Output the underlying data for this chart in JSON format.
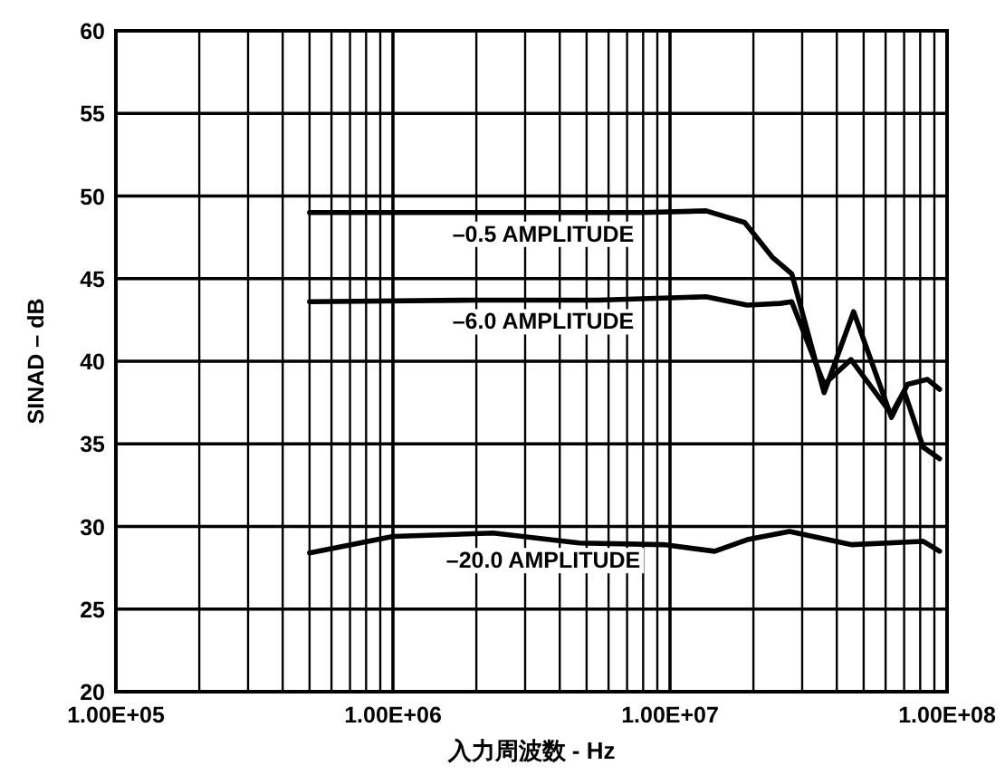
{
  "chart_data": {
    "type": "line",
    "xlabel": "入力周波数 - Hz",
    "ylabel": "SINAD – dB",
    "log": "x",
    "grid": true,
    "marker": "none",
    "line_style": "solid",
    "xlim": [
      100000,
      100000000
    ],
    "ylim": [
      20,
      60
    ],
    "xticks": [
      {
        "value": 100000,
        "label": "1.00E+05"
      },
      {
        "value": 1000000,
        "label": "1.00E+06"
      },
      {
        "value": 10000000,
        "label": "1.00E+07"
      },
      {
        "value": 100000000,
        "label": "1.00E+08"
      }
    ],
    "yticks": [
      20,
      25,
      30,
      35,
      40,
      45,
      50,
      55,
      60
    ],
    "series": [
      {
        "name": "–0.5 AMPLITUDE",
        "color": "#000000",
        "x": [
          500000,
          1000000,
          3000000,
          8000000,
          13500000,
          18600000,
          23400000,
          27500000,
          36000000,
          46000000,
          63000000,
          72000000,
          85000000,
          94000000
        ],
        "values": [
          49.0,
          49.0,
          49.0,
          49.0,
          49.1,
          48.4,
          46.3,
          45.3,
          38.1,
          43.0,
          36.6,
          38.6,
          38.9,
          38.3
        ]
      },
      {
        "name": "–6.0 AMPLITUDE",
        "color": "#000000",
        "x": [
          500000,
          2000000,
          5500000,
          13500000,
          19000000,
          25000000,
          27500000,
          36000000,
          45000000,
          63000000,
          70000000,
          82000000,
          94000000
        ],
        "values": [
          43.6,
          43.7,
          43.7,
          43.9,
          43.4,
          43.5,
          43.6,
          38.6,
          40.1,
          36.8,
          38.2,
          34.8,
          34.1
        ]
      },
      {
        "name": "–20.0 AMPLITUDE",
        "color": "#000000",
        "x": [
          500000,
          1000000,
          2300000,
          4700000,
          9500000,
          14500000,
          19000000,
          27000000,
          45000000,
          82000000,
          94000000
        ],
        "values": [
          28.4,
          29.4,
          29.6,
          29.0,
          28.9,
          28.5,
          29.2,
          29.7,
          28.9,
          29.1,
          28.5
        ]
      }
    ]
  }
}
